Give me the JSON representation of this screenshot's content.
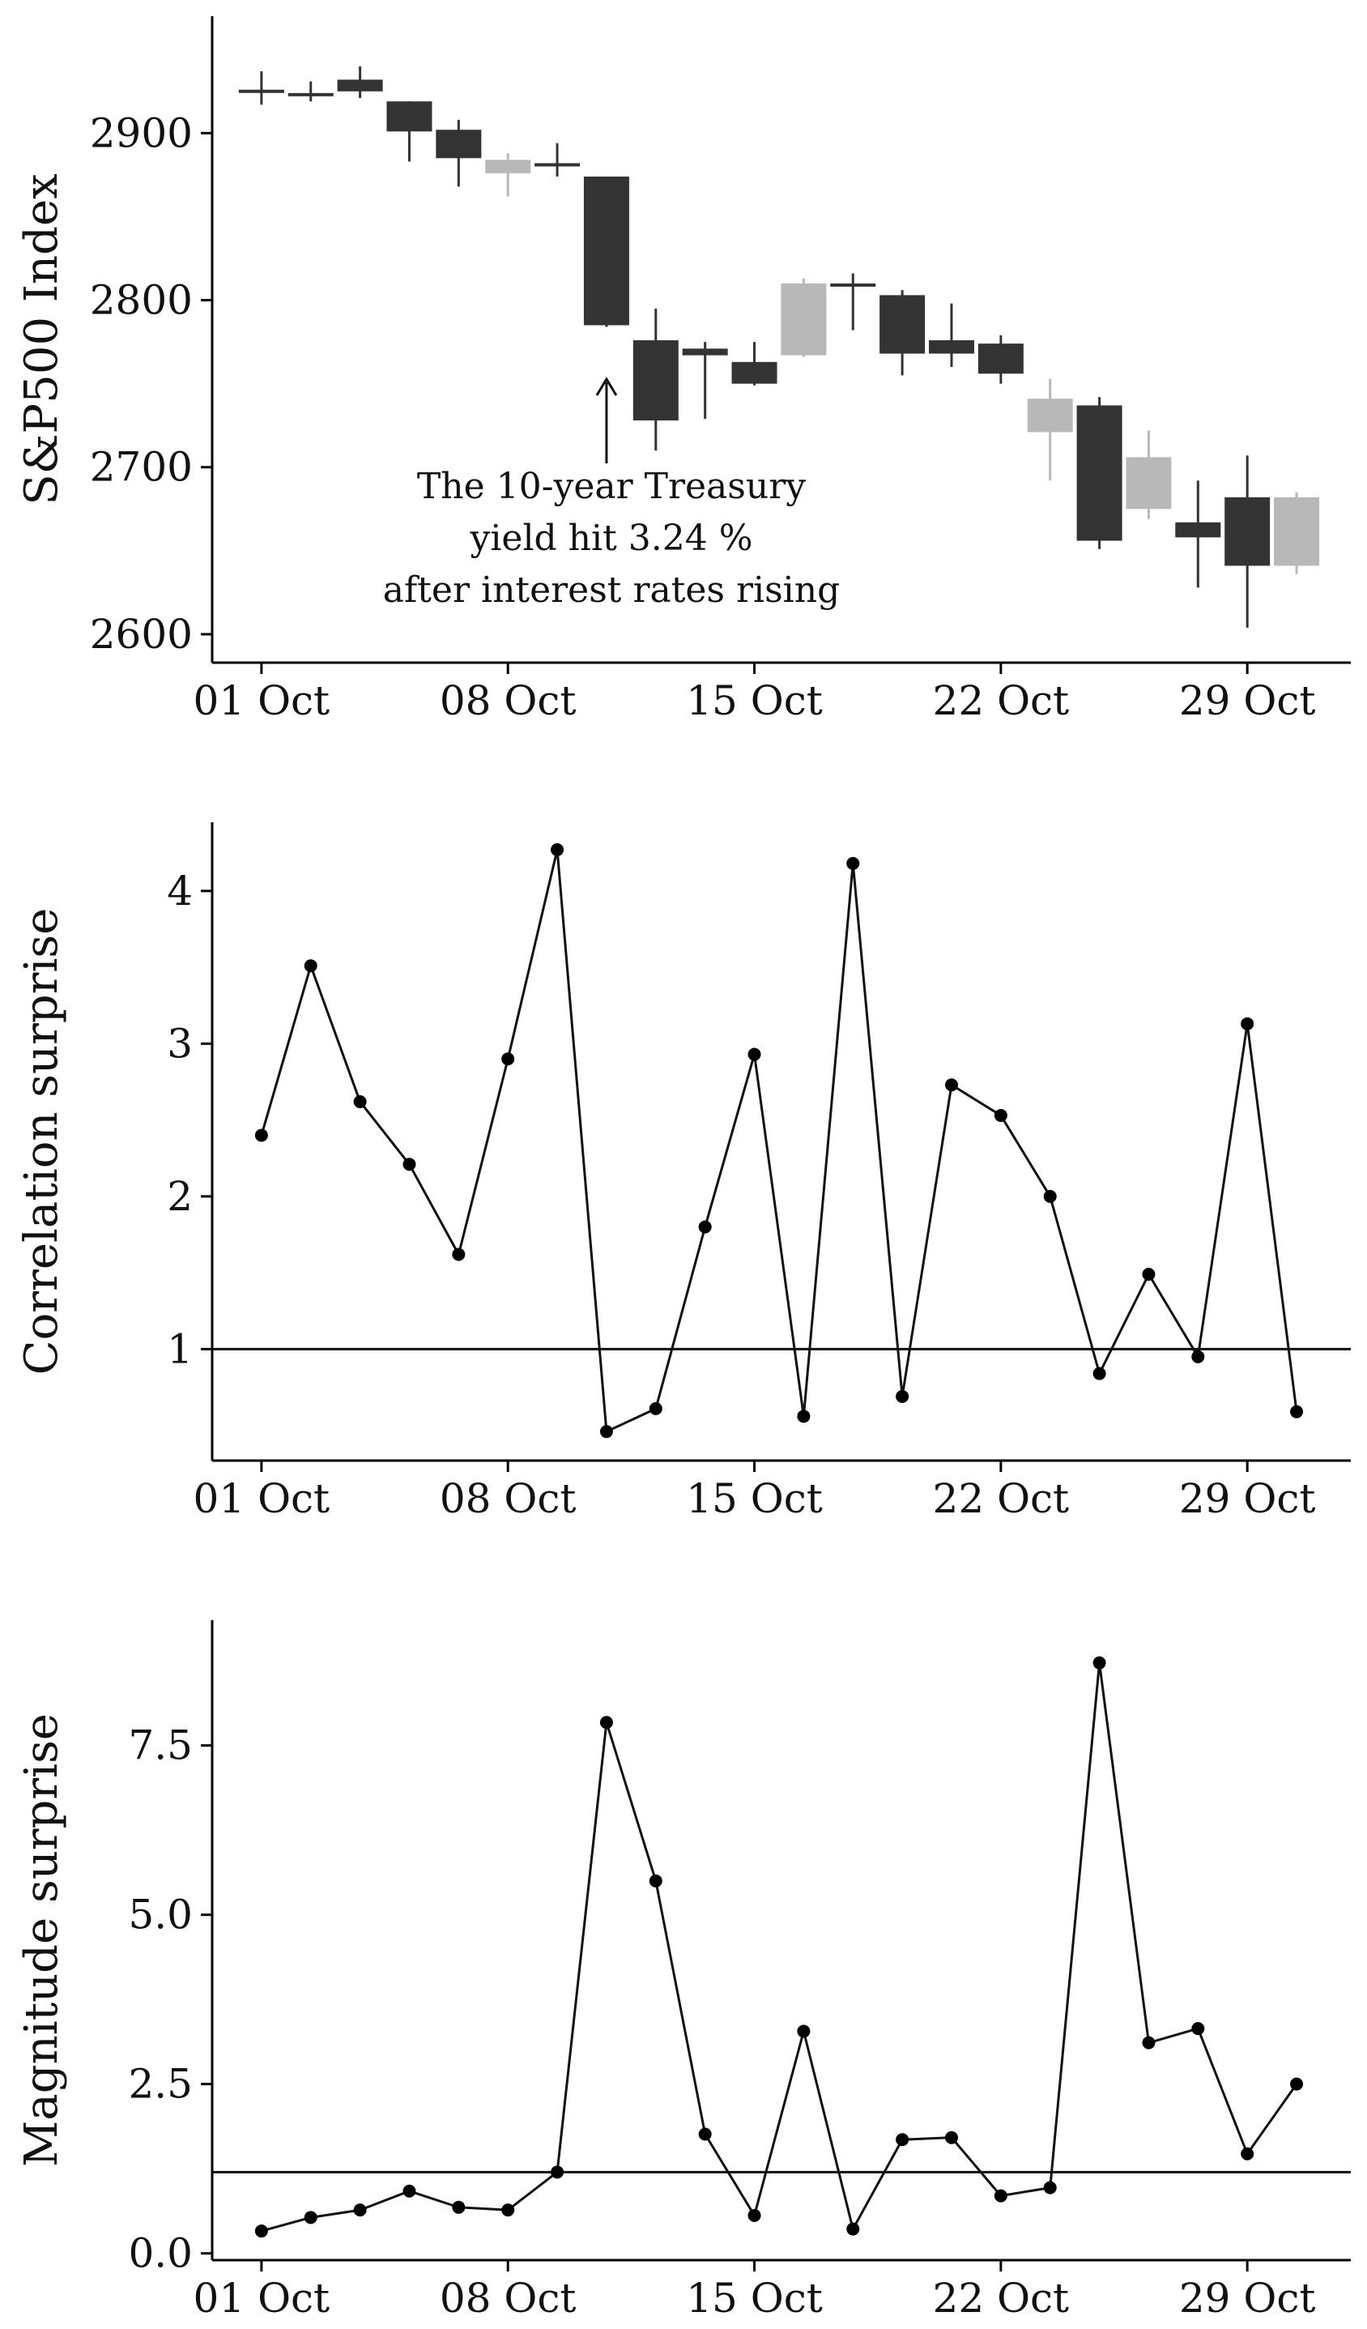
{
  "colors": {
    "down": "#333333",
    "up": "#b8b8b8",
    "ink": "#111111"
  },
  "chart_data": [
    {
      "type": "candlestick",
      "ylabel": "S&P500 Index",
      "xlabel": "",
      "ylim": [
        2583,
        2970
      ],
      "yticks": [
        2600,
        2700,
        2800,
        2900
      ],
      "ytick_labels": [
        "2600",
        "2700",
        "2800",
        "2900"
      ],
      "xlim": [
        -1,
        22.1
      ],
      "xticks": [
        0,
        5,
        10,
        15,
        20
      ],
      "xtick_labels": [
        "01 Oct",
        "08 Oct",
        "15 Oct",
        "22 Oct",
        "29 Oct"
      ],
      "candles": [
        {
          "date": "01 Oct",
          "open": 2926,
          "high": 2937,
          "low": 2917,
          "close": 2925
        },
        {
          "date": "02 Oct",
          "open": 2924,
          "high": 2931,
          "low": 2919,
          "close": 2923
        },
        {
          "date": "03 Oct",
          "open": 2932,
          "high": 2940,
          "low": 2921,
          "close": 2925
        },
        {
          "date": "04 Oct",
          "open": 2919,
          "high": 2919,
          "low": 2883,
          "close": 2901
        },
        {
          "date": "05 Oct",
          "open": 2902,
          "high": 2908,
          "low": 2868,
          "close": 2885
        },
        {
          "date": "08 Oct",
          "open": 2876,
          "high": 2888,
          "low": 2862,
          "close": 2884
        },
        {
          "date": "09 Oct",
          "open": 2882,
          "high": 2894,
          "low": 2874,
          "close": 2881
        },
        {
          "date": "10 Oct",
          "open": 2874,
          "high": 2874,
          "low": 2784,
          "close": 2785
        },
        {
          "date": "11 Oct",
          "open": 2776,
          "high": 2795,
          "low": 2710,
          "close": 2728
        },
        {
          "date": "12 Oct",
          "open": 2771,
          "high": 2775,
          "low": 2729,
          "close": 2767
        },
        {
          "date": "15 Oct",
          "open": 2763,
          "high": 2775,
          "low": 2749,
          "close": 2750
        },
        {
          "date": "16 Oct",
          "open": 2767,
          "high": 2813,
          "low": 2766,
          "close": 2810
        },
        {
          "date": "17 Oct",
          "open": 2810,
          "high": 2816,
          "low": 2782,
          "close": 2809
        },
        {
          "date": "18 Oct",
          "open": 2803,
          "high": 2806,
          "low": 2755,
          "close": 2768
        },
        {
          "date": "19 Oct",
          "open": 2776,
          "high": 2798,
          "low": 2760,
          "close": 2768
        },
        {
          "date": "22 Oct",
          "open": 2774,
          "high": 2779,
          "low": 2750,
          "close": 2756
        },
        {
          "date": "23 Oct",
          "open": 2721,
          "high": 2753,
          "low": 2692,
          "close": 2741
        },
        {
          "date": "24 Oct",
          "open": 2737,
          "high": 2742,
          "low": 2651,
          "close": 2656
        },
        {
          "date": "25 Oct",
          "open": 2675,
          "high": 2722,
          "low": 2669,
          "close": 2706
        },
        {
          "date": "26 Oct",
          "open": 2667,
          "high": 2692,
          "low": 2628,
          "close": 2658
        },
        {
          "date": "29 Oct",
          "open": 2682,
          "high": 2707,
          "low": 2604,
          "close": 2641
        },
        {
          "date": "30 Oct",
          "open": 2641,
          "high": 2685,
          "low": 2636,
          "close": 2682
        }
      ],
      "annotations": [
        {
          "at": "10 Oct",
          "lines": [
            "The 10-year Treasury",
            "yield hit 3.24 %",
            "after interest rates rising"
          ]
        }
      ]
    },
    {
      "type": "line",
      "ylabel": "Correlation surprise",
      "xlabel": "",
      "ylim": [
        0.27,
        4.45
      ],
      "yticks": [
        1,
        2,
        3,
        4
      ],
      "ytick_labels": [
        "1",
        "2",
        "3",
        "4"
      ],
      "xlim": [
        -1,
        22.1
      ],
      "xticks": [
        0,
        5,
        10,
        15,
        20
      ],
      "xtick_labels": [
        "01 Oct",
        "08 Oct",
        "15 Oct",
        "22 Oct",
        "29 Oct"
      ],
      "hline": 1,
      "values": [
        2.4,
        3.51,
        2.62,
        2.21,
        1.62,
        2.9,
        4.27,
        0.46,
        0.61,
        1.8,
        2.93,
        0.56,
        4.18,
        0.69,
        2.73,
        2.53,
        2.0,
        0.84,
        1.49,
        0.95,
        3.13,
        0.59
      ]
    },
    {
      "type": "line",
      "ylabel": "Magnitude surprise",
      "xlabel": "",
      "ylim": [
        -0.1,
        9.35
      ],
      "yticks": [
        0,
        2.5,
        5,
        7.5
      ],
      "ytick_labels": [
        "0.0",
        "2.5",
        "5.0",
        "7.5"
      ],
      "xlim": [
        -1,
        22.1
      ],
      "xticks": [
        0,
        5,
        10,
        15,
        20
      ],
      "xtick_labels": [
        "01 Oct",
        "08 Oct",
        "15 Oct",
        "22 Oct",
        "29 Oct"
      ],
      "hline": 1.2,
      "values": [
        0.33,
        0.53,
        0.64,
        0.92,
        0.68,
        0.64,
        1.2,
        7.84,
        5.5,
        1.76,
        0.56,
        3.28,
        0.36,
        1.68,
        1.71,
        0.85,
        0.97,
        8.72,
        3.11,
        3.32,
        1.47,
        2.5
      ]
    }
  ]
}
